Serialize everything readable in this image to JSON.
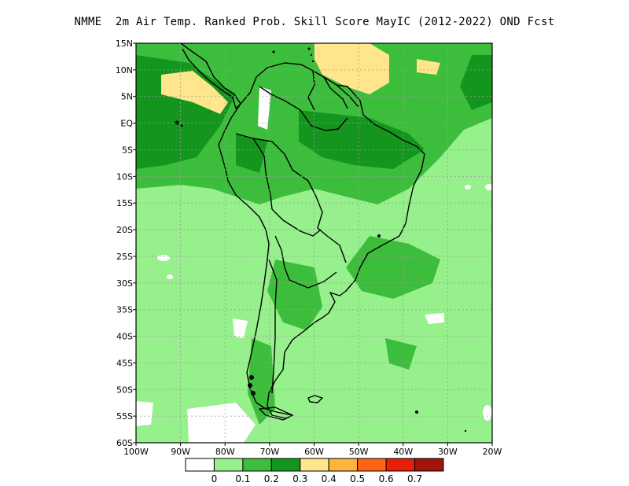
{
  "title": "NMME  2m Air Temp. Ranked Prob. Skill Score MayIC (2012-2022) OND Fcst",
  "axes": {
    "lat_labels": [
      "15N",
      "10N",
      "5N",
      "EQ",
      "5S",
      "10S",
      "15S",
      "20S",
      "25S",
      "30S",
      "35S",
      "40S",
      "45S",
      "50S",
      "55S",
      "60S"
    ],
    "lon_labels": [
      "100W",
      "90W",
      "80W",
      "70W",
      "60W",
      "50W",
      "40W",
      "30W",
      "20W"
    ]
  },
  "colorbar": {
    "colors": [
      "#ffffff",
      "#96f08c",
      "#3cbe3c",
      "#14961e",
      "#ffe68c",
      "#ffb43c",
      "#ff6414",
      "#e61e0a",
      "#a0140a"
    ],
    "labels": [
      "0",
      "0.1",
      "0.2",
      "0.3",
      "0.4",
      "0.5",
      "0.6",
      "0.7"
    ]
  },
  "colors": {
    "land_light_green": "#96f08c",
    "mid_green": "#3cbe3c",
    "dark_green": "#14961e",
    "light_yellow": "#ffe68c",
    "outline": "#000000"
  }
}
